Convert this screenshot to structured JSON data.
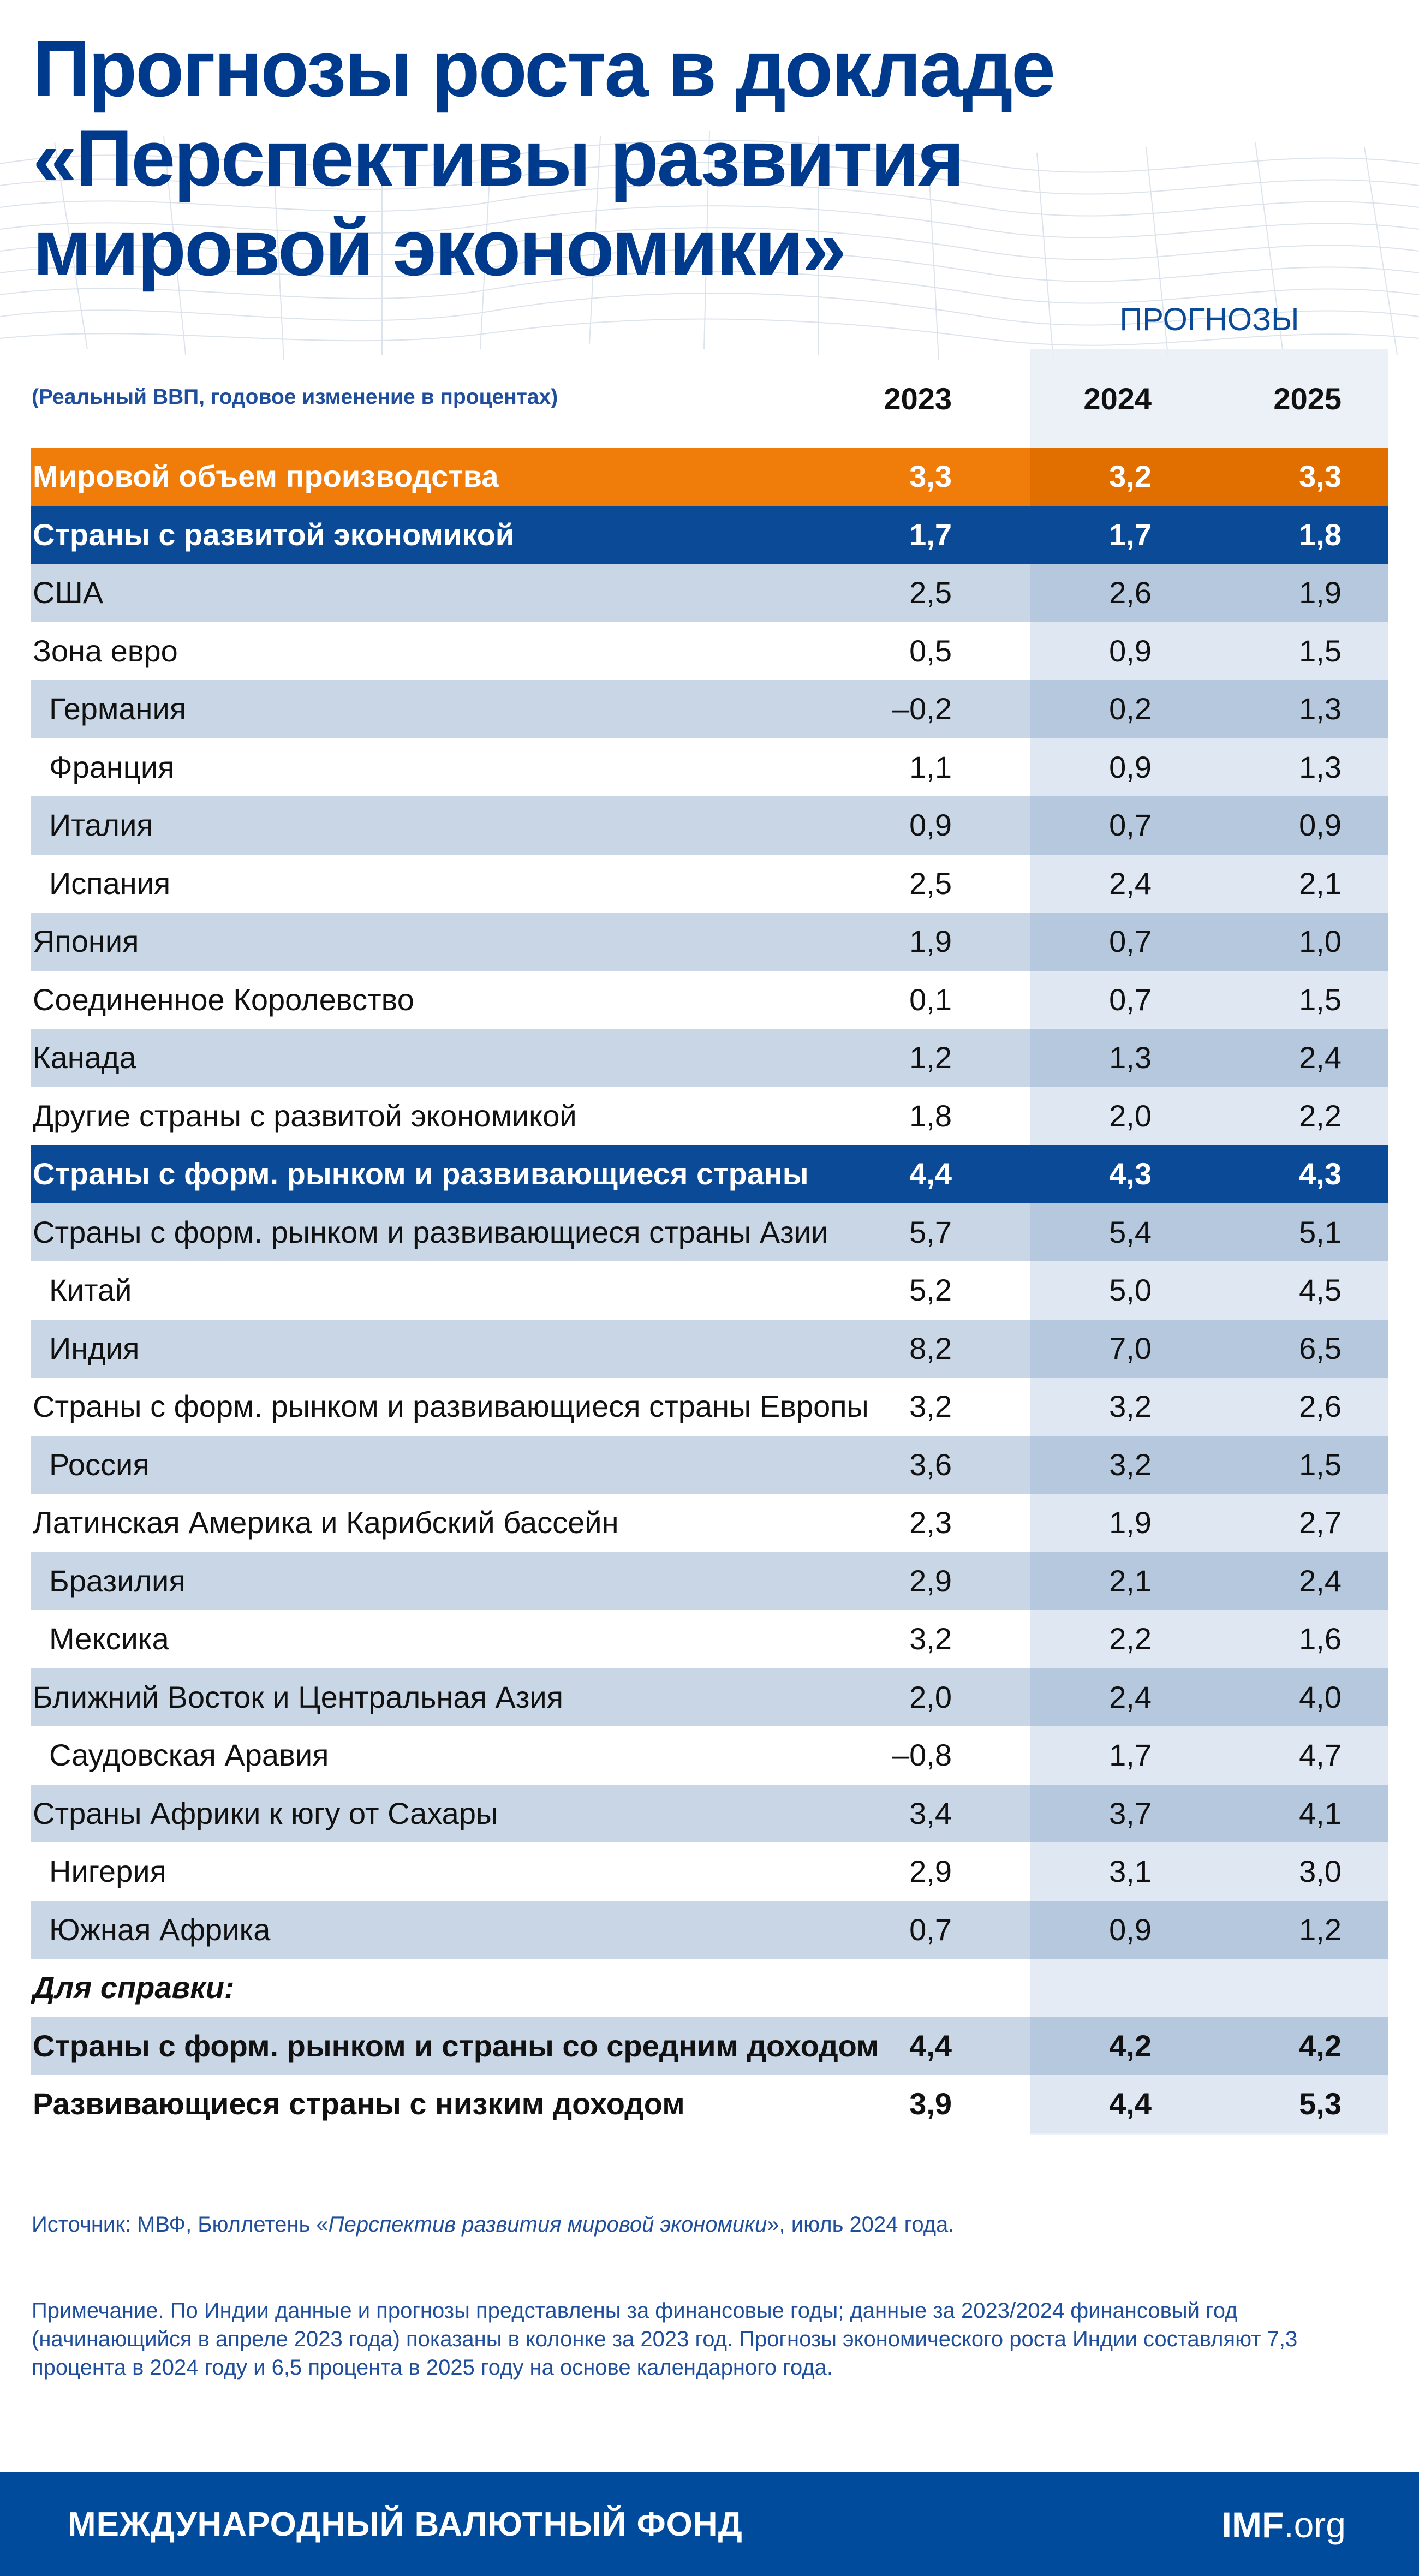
{
  "title_lines": [
    "Прогнозы роста в докладе",
    "«Перспективы развития",
    "мировой экономики»"
  ],
  "forecast_label": "ПРОГНОЗЫ",
  "subtitle": "(Реальный ВВП, годовое изменение в процентах)",
  "years": [
    "2023",
    "2024",
    "2025"
  ],
  "rows": [
    {
      "label": "Мировой объем производства",
      "v": [
        "3,3",
        "3,2",
        "3,3"
      ],
      "style": "world"
    },
    {
      "label": "Страны с развитой экономикой",
      "v": [
        "1,7",
        "1,7",
        "1,8"
      ],
      "style": "group"
    },
    {
      "label": "США",
      "v": [
        "2,5",
        "2,6",
        "1,9"
      ],
      "style": "shade"
    },
    {
      "label": "Зона евро",
      "v": [
        "0,5",
        "0,9",
        "1,5"
      ],
      "style": "plain"
    },
    {
      "label": "Германия",
      "v": [
        "–0,2",
        "0,2",
        "1,3"
      ],
      "style": "shade sub"
    },
    {
      "label": "Франция",
      "v": [
        "1,1",
        "0,9",
        "1,3"
      ],
      "style": "plain sub"
    },
    {
      "label": "Италия",
      "v": [
        "0,9",
        "0,7",
        "0,9"
      ],
      "style": "shade sub"
    },
    {
      "label": "Испания",
      "v": [
        "2,5",
        "2,4",
        "2,1"
      ],
      "style": "plain sub"
    },
    {
      "label": "Япония",
      "v": [
        "1,9",
        "0,7",
        "1,0"
      ],
      "style": "shade"
    },
    {
      "label": "Соединенное Королевство",
      "v": [
        "0,1",
        "0,7",
        "1,5"
      ],
      "style": "plain"
    },
    {
      "label": "Канада",
      "v": [
        "1,2",
        "1,3",
        "2,4"
      ],
      "style": "shade"
    },
    {
      "label": "Другие страны с развитой экономикой",
      "v": [
        "1,8",
        "2,0",
        "2,2"
      ],
      "style": "plain"
    },
    {
      "label": "Страны с форм. рынком и развивающиеся страны",
      "v": [
        "4,4",
        "4,3",
        "4,3"
      ],
      "style": "group"
    },
    {
      "label": "Страны с форм. рынком и развивающиеся страны Азии",
      "v": [
        "5,7",
        "5,4",
        "5,1"
      ],
      "style": "shade"
    },
    {
      "label": "Китай",
      "v": [
        "5,2",
        "5,0",
        "4,5"
      ],
      "style": "plain sub"
    },
    {
      "label": "Индия",
      "v": [
        "8,2",
        "7,0",
        "6,5"
      ],
      "style": "shade sub"
    },
    {
      "label": "Страны с форм. рынком и развивающиеся страны Европы",
      "v": [
        "3,2",
        "3,2",
        "2,6"
      ],
      "style": "plain"
    },
    {
      "label": "Россия",
      "v": [
        "3,6",
        "3,2",
        "1,5"
      ],
      "style": "shade sub"
    },
    {
      "label": "Латинская Америка и Карибский бассейн",
      "v": [
        "2,3",
        "1,9",
        "2,7"
      ],
      "style": "plain"
    },
    {
      "label": "Бразилия",
      "v": [
        "2,9",
        "2,1",
        "2,4"
      ],
      "style": "shade sub"
    },
    {
      "label": "Мексика",
      "v": [
        "3,2",
        "2,2",
        "1,6"
      ],
      "style": "plain sub"
    },
    {
      "label": "Ближний Восток и Центральная Азия",
      "v": [
        "2,0",
        "2,4",
        "4,0"
      ],
      "style": "shade"
    },
    {
      "label": "Саудовская Аравия",
      "v": [
        "–0,8",
        "1,7",
        "4,7"
      ],
      "style": "plain sub"
    },
    {
      "label": "Страны Африки к югу от Сахары",
      "v": [
        "3,4",
        "3,7",
        "4,1"
      ],
      "style": "shade"
    },
    {
      "label": "Нигерия",
      "v": [
        "2,9",
        "3,1",
        "3,0"
      ],
      "style": "plain sub"
    },
    {
      "label": "Южная Африка",
      "v": [
        "0,7",
        "0,9",
        "1,2"
      ],
      "style": "shade sub"
    },
    {
      "label": "Для справки:",
      "v": [
        "",
        "",
        ""
      ],
      "style": "memo"
    },
    {
      "label": "Страны с форм. рынком и страны со средним доходом",
      "v": [
        "4,4",
        "4,2",
        "4,2"
      ],
      "style": "shade bold"
    },
    {
      "label": "Развивающиеся страны с низким доходом",
      "v": [
        "3,9",
        "4,4",
        "5,3"
      ],
      "style": "plain bold"
    }
  ],
  "source": {
    "prefix": "Источник: МВФ, Бюллетень «",
    "title": "Перспектив развития мировой экономики",
    "suffix": "», июль 2024 года."
  },
  "note": "Примечание. По Индии данные и прогнозы представлены за финансовые годы; данные за 2023/2024 финансовый год (начинающийся в апреле 2023 года) показаны в колонке за 2023 год. Прогнозы экономического роста Индии составляют 7,3  процента в 2024 году и 6,5 процента в 2025 году на основе календарного года.",
  "footer": {
    "org": "МЕЖДУНАРОДНЫЙ ВАЛЮТНЫЙ ФОНД",
    "site_bold": "IMF",
    "site_rest": ".org"
  },
  "colors": {
    "title": "#003a8c",
    "world_row": "#f07c0a",
    "group_row": "#0a4a96",
    "shade_row": "#c8d6e6",
    "footer": "#004b9b"
  }
}
